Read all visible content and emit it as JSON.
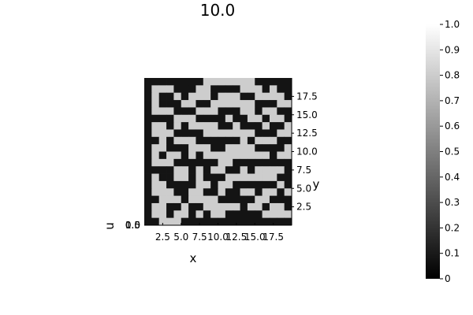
{
  "chart_data": {
    "type": "heatmap",
    "title": "10.0",
    "xlabel": "x",
    "ylabel": "y",
    "zlabel": "u",
    "colormap": "grays",
    "colors": {
      "low": "#000000",
      "high": "#ffffff"
    },
    "xlim": [
      0,
      20
    ],
    "ylim": [
      0,
      20
    ],
    "zlim": [
      0,
      1
    ],
    "x_ticks": [
      "2.5",
      "5.0",
      "7.5",
      "10.0",
      "12.5",
      "15.0",
      "17.5"
    ],
    "y_ticks": [
      "2.5",
      "5.0",
      "7.5",
      "10.0",
      "12.5",
      "15.0",
      "17.5"
    ],
    "z_ticks": [
      "0.0",
      "0.5",
      "1.0"
    ],
    "colorbar_ticks": [
      "0",
      "0.1",
      "0.2",
      "0.3",
      "0.4",
      "0.5",
      "0.6",
      "0.7",
      "0.8",
      "0.9",
      "1.0"
    ],
    "grid": false,
    "legend": "colorbar-right",
    "rows_top_to_bottom": [
      [
        0,
        0,
        0,
        0,
        0,
        0,
        0,
        0,
        1,
        1,
        1,
        1,
        1,
        1,
        1,
        0,
        0,
        0,
        0,
        0
      ],
      [
        0,
        1,
        1,
        1,
        0,
        0,
        0,
        1,
        1,
        0,
        0,
        0,
        0,
        1,
        1,
        1,
        0,
        1,
        0,
        0
      ],
      [
        0,
        1,
        0,
        0,
        1,
        0,
        1,
        1,
        1,
        0,
        1,
        1,
        1,
        0,
        0,
        1,
        1,
        1,
        1,
        0
      ],
      [
        0,
        1,
        0,
        0,
        0,
        1,
        1,
        0,
        0,
        1,
        1,
        1,
        1,
        1,
        1,
        0,
        0,
        0,
        1,
        1
      ],
      [
        0,
        1,
        1,
        1,
        0,
        0,
        0,
        1,
        1,
        1,
        0,
        0,
        0,
        1,
        1,
        0,
        1,
        1,
        0,
        0
      ],
      [
        0,
        0,
        0,
        0,
        1,
        1,
        1,
        0,
        0,
        0,
        0,
        1,
        0,
        0,
        1,
        1,
        0,
        1,
        1,
        0
      ],
      [
        0,
        1,
        1,
        0,
        1,
        0,
        1,
        1,
        1,
        1,
        0,
        0,
        1,
        0,
        0,
        0,
        1,
        0,
        0,
        1
      ],
      [
        0,
        1,
        1,
        1,
        0,
        0,
        0,
        0,
        1,
        1,
        1,
        1,
        1,
        1,
        1,
        0,
        0,
        0,
        1,
        1
      ],
      [
        0,
        0,
        1,
        0,
        1,
        1,
        1,
        0,
        0,
        0,
        0,
        0,
        0,
        1,
        0,
        1,
        1,
        1,
        0,
        0
      ],
      [
        0,
        1,
        1,
        0,
        0,
        0,
        1,
        1,
        1,
        0,
        0,
        1,
        1,
        1,
        1,
        0,
        0,
        0,
        0,
        1
      ],
      [
        0,
        1,
        0,
        1,
        1,
        0,
        1,
        0,
        1,
        1,
        1,
        1,
        1,
        1,
        1,
        1,
        1,
        0,
        1,
        1
      ],
      [
        0,
        1,
        1,
        1,
        0,
        0,
        0,
        0,
        0,
        0,
        1,
        1,
        0,
        0,
        0,
        0,
        0,
        0,
        0,
        0
      ],
      [
        0,
        0,
        0,
        0,
        1,
        1,
        0,
        1,
        0,
        1,
        1,
        0,
        0,
        1,
        0,
        1,
        1,
        1,
        1,
        0
      ],
      [
        0,
        1,
        0,
        0,
        1,
        1,
        0,
        1,
        0,
        0,
        0,
        1,
        1,
        1,
        1,
        1,
        1,
        1,
        0,
        0
      ],
      [
        0,
        1,
        1,
        0,
        0,
        0,
        0,
        1,
        1,
        0,
        1,
        1,
        0,
        0,
        0,
        0,
        0,
        0,
        1,
        0
      ],
      [
        0,
        1,
        1,
        1,
        0,
        0,
        1,
        1,
        0,
        0,
        1,
        0,
        0,
        1,
        1,
        0,
        1,
        1,
        0,
        1
      ],
      [
        0,
        0,
        1,
        1,
        1,
        0,
        1,
        1,
        1,
        1,
        0,
        0,
        0,
        0,
        0,
        1,
        1,
        0,
        0,
        0
      ],
      [
        0,
        1,
        1,
        0,
        0,
        1,
        0,
        0,
        1,
        1,
        1,
        1,
        1,
        0,
        1,
        1,
        0,
        1,
        1,
        0
      ],
      [
        0,
        1,
        1,
        0,
        1,
        1,
        0,
        1,
        0,
        1,
        1,
        0,
        0,
        0,
        0,
        0,
        1,
        1,
        1,
        1
      ],
      [
        0,
        0,
        1,
        1,
        1,
        0,
        0,
        0,
        0,
        0,
        0,
        0,
        0,
        0,
        0,
        0,
        0,
        0,
        0,
        0
      ]
    ]
  }
}
